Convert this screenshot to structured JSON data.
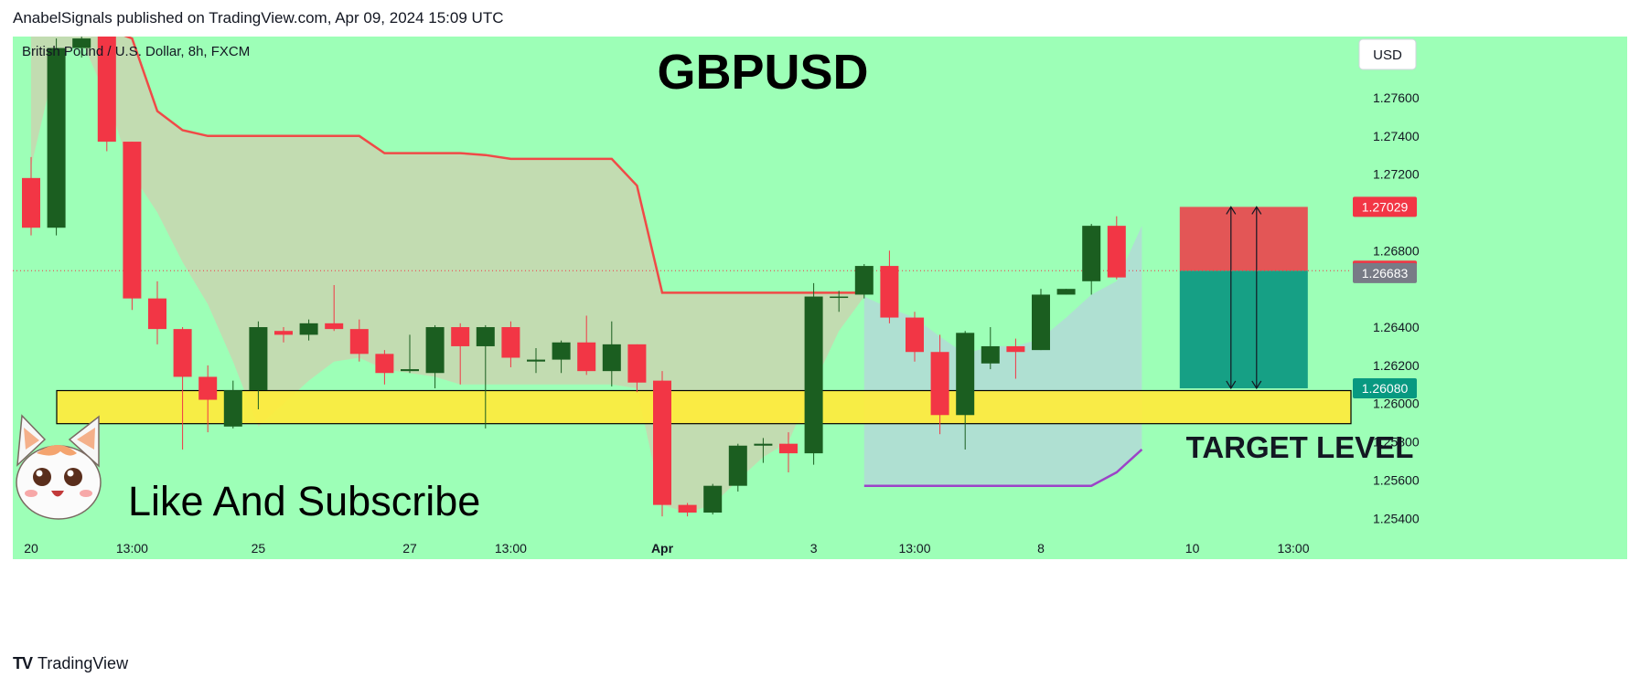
{
  "header": {
    "text": "AnabelSignals published on TradingView.com, Apr 09, 2024 15:09 UTC"
  },
  "chart": {
    "symbol_label": "British Pound / U.S. Dollar, 8h, FXCM",
    "title": "GBPUSD",
    "currency_button": "USD",
    "target_label": "TARGET LEVEL",
    "cta_text": "Like And Subscribe",
    "mascot": "cat-mascot",
    "colors": {
      "background": "#9dffb7",
      "bull": "#1b5e20",
      "bear": "#f23645",
      "band_line": "#f04a47",
      "band_fill": "#c9d6b0",
      "support_zone": "#ffeb3b",
      "stop_zone": "#e35656",
      "profit_zone": "#16a085",
      "low_line": "#9c43c8"
    },
    "price_badges": [
      {
        "label": "1.27029",
        "value": 1.27029,
        "color": "#f23645"
      },
      {
        "label": "1.26695",
        "value": 1.26695,
        "color": "#f23645"
      },
      {
        "label": "1.26683",
        "value": 1.26683,
        "color": "#787b86"
      },
      {
        "label": "1.26080",
        "value": 1.2608,
        "color": "#089981"
      }
    ]
  },
  "chart_data": {
    "type": "candlestick",
    "title": "GBPUSD",
    "symbol": "British Pound / U.S. Dollar, 8h, FXCM",
    "timeframe": "8h",
    "ylim": [
      1.2532,
      1.2792
    ],
    "y_ticks": [
      "1.27600",
      "1.27400",
      "1.27200",
      "1.26800",
      "1.26400",
      "1.26200",
      "1.26000",
      "1.25800",
      "1.25600",
      "1.25400"
    ],
    "x_ticks": [
      {
        "label": "20",
        "bar": 0
      },
      {
        "label": "13:00",
        "bar": 4
      },
      {
        "label": "25",
        "bar": 9
      },
      {
        "label": "27",
        "bar": 15
      },
      {
        "label": "13:00",
        "bar": 19
      },
      {
        "label": "Apr",
        "bar": 25
      },
      {
        "label": "3",
        "bar": 31
      },
      {
        "label": "13:00",
        "bar": 35
      },
      {
        "label": "8",
        "bar": 40
      },
      {
        "label": "10",
        "bar": 46
      },
      {
        "label": "13:00",
        "bar": 50
      }
    ],
    "candles": [
      {
        "o": 1.2718,
        "h": 1.2729,
        "l": 1.2688,
        "c": 1.2692
      },
      {
        "o": 1.2692,
        "h": 1.2791,
        "l": 1.2688,
        "c": 1.2786
      },
      {
        "o": 1.2786,
        "h": 1.2796,
        "l": 1.2781,
        "c": 1.2791
      },
      {
        "o": 1.2795,
        "h": 1.2798,
        "l": 1.2732,
        "c": 1.2737
      },
      {
        "o": 1.2737,
        "h": 1.2737,
        "l": 1.2649,
        "c": 1.2655
      },
      {
        "o": 1.2655,
        "h": 1.2664,
        "l": 1.2631,
        "c": 1.2639
      },
      {
        "o": 1.2639,
        "h": 1.264,
        "l": 1.2576,
        "c": 1.2614
      },
      {
        "o": 1.2614,
        "h": 1.262,
        "l": 1.2585,
        "c": 1.2602
      },
      {
        "o": 1.2588,
        "h": 1.2612,
        "l": 1.2587,
        "c": 1.2607
      },
      {
        "o": 1.2607,
        "h": 1.2643,
        "l": 1.2597,
        "c": 1.264
      },
      {
        "o": 1.2638,
        "h": 1.264,
        "l": 1.2632,
        "c": 1.2636
      },
      {
        "o": 1.2636,
        "h": 1.2644,
        "l": 1.2633,
        "c": 1.2642
      },
      {
        "o": 1.2642,
        "h": 1.2662,
        "l": 1.2638,
        "c": 1.2639
      },
      {
        "o": 1.2639,
        "h": 1.2644,
        "l": 1.2622,
        "c": 1.2626
      },
      {
        "o": 1.2626,
        "h": 1.2628,
        "l": 1.261,
        "c": 1.2616
      },
      {
        "o": 1.2617,
        "h": 1.2636,
        "l": 1.2616,
        "c": 1.2618
      },
      {
        "o": 1.2616,
        "h": 1.2641,
        "l": 1.2608,
        "c": 1.264
      },
      {
        "o": 1.264,
        "h": 1.2642,
        "l": 1.261,
        "c": 1.263
      },
      {
        "o": 1.263,
        "h": 1.2641,
        "l": 1.2587,
        "c": 1.264
      },
      {
        "o": 1.264,
        "h": 1.2643,
        "l": 1.2619,
        "c": 1.2624
      },
      {
        "o": 1.2622,
        "h": 1.2629,
        "l": 1.2616,
        "c": 1.2623
      },
      {
        "o": 1.2623,
        "h": 1.2633,
        "l": 1.2616,
        "c": 1.2632
      },
      {
        "o": 1.2632,
        "h": 1.2646,
        "l": 1.2615,
        "c": 1.2617
      },
      {
        "o": 1.2617,
        "h": 1.2643,
        "l": 1.2609,
        "c": 1.2631
      },
      {
        "o": 1.2631,
        "h": 1.2631,
        "l": 1.2606,
        "c": 1.2611
      },
      {
        "o": 1.2612,
        "h": 1.2617,
        "l": 1.2541,
        "c": 1.2547
      },
      {
        "o": 1.2547,
        "h": 1.2548,
        "l": 1.2541,
        "c": 1.2543
      },
      {
        "o": 1.2543,
        "h": 1.2558,
        "l": 1.2542,
        "c": 1.2557
      },
      {
        "o": 1.2557,
        "h": 1.2579,
        "l": 1.2554,
        "c": 1.2578
      },
      {
        "o": 1.2578,
        "h": 1.2582,
        "l": 1.2569,
        "c": 1.2579
      },
      {
        "o": 1.2579,
        "h": 1.2585,
        "l": 1.2564,
        "c": 1.2574
      },
      {
        "o": 1.2574,
        "h": 1.2663,
        "l": 1.2568,
        "c": 1.2656
      },
      {
        "o": 1.2656,
        "h": 1.2659,
        "l": 1.2648,
        "c": 1.2656
      },
      {
        "o": 1.2657,
        "h": 1.2673,
        "l": 1.2655,
        "c": 1.2672
      },
      {
        "o": 1.2672,
        "h": 1.268,
        "l": 1.2642,
        "c": 1.2645
      },
      {
        "o": 1.2645,
        "h": 1.2648,
        "l": 1.2622,
        "c": 1.2627
      },
      {
        "o": 1.2627,
        "h": 1.2636,
        "l": 1.2584,
        "c": 1.2594
      },
      {
        "o": 1.2594,
        "h": 1.2638,
        "l": 1.2576,
        "c": 1.2637
      },
      {
        "o": 1.2621,
        "h": 1.264,
        "l": 1.2618,
        "c": 1.263
      },
      {
        "o": 1.263,
        "h": 1.2634,
        "l": 1.2613,
        "c": 1.2627
      },
      {
        "o": 1.2628,
        "h": 1.266,
        "l": 1.2628,
        "c": 1.2657
      },
      {
        "o": 1.2657,
        "h": 1.266,
        "l": 1.2657,
        "c": 1.266
      },
      {
        "o": 1.2664,
        "h": 1.2694,
        "l": 1.2657,
        "c": 1.2693
      },
      {
        "o": 1.2693,
        "h": 1.2698,
        "l": 1.2665,
        "c": 1.2666
      }
    ],
    "band_upper": [
      1.2796,
      1.2796,
      1.2796,
      1.2796,
      1.2791,
      1.2753,
      1.2743,
      1.274,
      1.274,
      1.274,
      1.274,
      1.274,
      1.274,
      1.274,
      1.2731,
      1.2731,
      1.2731,
      1.2731,
      1.273,
      1.2728,
      1.2728,
      1.2728,
      1.2728,
      1.2728,
      1.2714,
      1.2658,
      1.2658,
      1.2658,
      1.2658,
      1.2658,
      1.2658,
      1.2658,
      1.2658,
      1.2658
    ],
    "band_lower": [
      1.2724,
      1.278,
      1.279,
      1.276,
      1.272,
      1.27,
      1.2674,
      1.2652,
      1.2622,
      1.2588,
      1.26,
      1.2612,
      1.2622,
      1.2624,
      1.2618,
      1.2616,
      1.2614,
      1.261,
      1.261,
      1.261,
      1.261,
      1.261,
      1.261,
      1.261,
      1.2608,
      1.2547,
      1.2543,
      1.2547,
      1.256,
      1.2572,
      1.258,
      1.261,
      1.2638,
      1.2656
    ],
    "trail_start_bar": 33,
    "trail_upper": [
      1.2656,
      1.265,
      1.2645,
      1.2635,
      1.2626,
      1.263,
      1.263,
      1.2634,
      1.2645,
      1.2657,
      1.2664,
      1.2693
    ],
    "trail_lower": [
      1.2557,
      1.2557,
      1.2557,
      1.2557,
      1.2557,
      1.2557,
      1.2557,
      1.2557,
      1.2557,
      1.2557,
      1.2564,
      1.2576
    ],
    "support_zone": [
      1.26068,
      1.25895
    ],
    "risk_reward": {
      "stop": 1.27029,
      "entry": 1.26695,
      "target": 1.2608
    },
    "last_price": 1.26695
  }
}
